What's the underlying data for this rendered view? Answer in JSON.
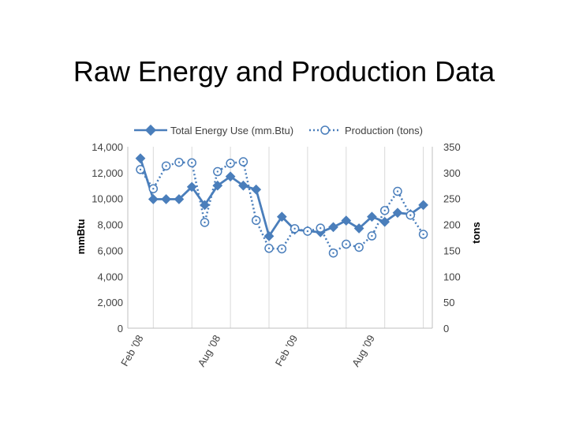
{
  "slide": {
    "title": "Raw Energy and Production Data"
  },
  "chart_data": {
    "type": "line",
    "title": "",
    "xlabel": "",
    "ylabel_left": "mmBtu",
    "ylabel_right": "tons",
    "ylim_left": [
      0,
      14000
    ],
    "ylim_right": [
      0,
      350
    ],
    "yticks_left": [
      "0",
      "2,000",
      "4,000",
      "6,000",
      "8,000",
      "10,000",
      "12,000",
      "14,000"
    ],
    "yticks_right": [
      "0",
      "50",
      "100",
      "150",
      "200",
      "250",
      "300",
      "350"
    ],
    "x_tick_labels": [
      {
        "index": 0,
        "label": "Feb '08"
      },
      {
        "index": 6,
        "label": "Aug '08"
      },
      {
        "index": 12,
        "label": "Feb '09"
      },
      {
        "index": 18,
        "label": "Aug '09"
      }
    ],
    "grid": "vertical",
    "legend": "top",
    "colors": {
      "energy": "#4a7ebb",
      "production": "#4a7ebb"
    },
    "series": [
      {
        "name": "Total Energy Use (mm.Btu)",
        "axis": "left",
        "style": "solid-diamond",
        "values": [
          13100,
          9950,
          9950,
          9950,
          10900,
          9500,
          11000,
          11700,
          11000,
          10700,
          7100,
          8600,
          7600,
          7500,
          7400,
          7800,
          8300,
          7700,
          8600,
          8200,
          8900,
          8800,
          9500
        ]
      },
      {
        "name": "Production (tons)",
        "axis": "right",
        "style": "dotted-circle",
        "values": [
          306,
          269,
          313,
          320,
          319,
          204,
          302,
          318,
          321,
          208,
          154,
          153,
          192,
          187,
          193,
          145,
          162,
          156,
          178,
          227,
          264,
          218,
          181
        ]
      }
    ]
  }
}
